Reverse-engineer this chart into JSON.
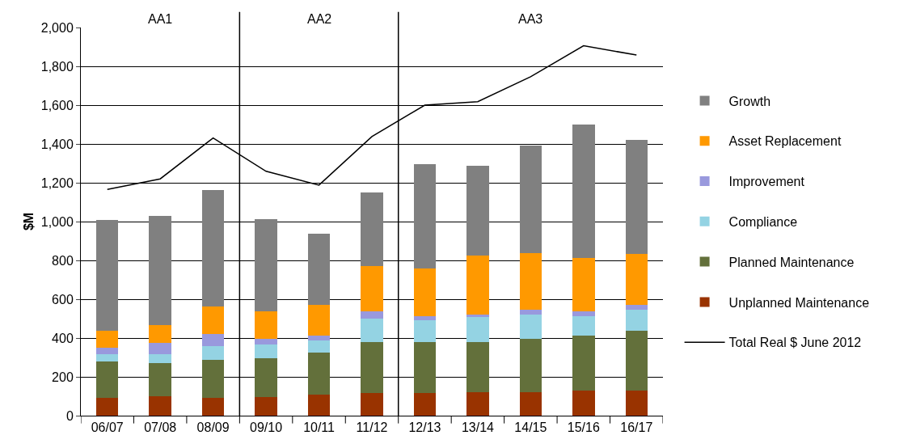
{
  "chart_data": {
    "type": "bar",
    "stacked": true,
    "ylabel": "$M",
    "categories": [
      "06/07",
      "07/08",
      "08/09",
      "09/10",
      "10/11",
      "11/12",
      "12/13",
      "13/14",
      "14/15",
      "15/16",
      "16/17"
    ],
    "series": [
      {
        "name": "Unplanned Maintenance",
        "color": "#993300",
        "values": [
          92,
          99,
          92,
          96,
          108,
          118,
          116,
          121,
          121,
          129,
          129
        ]
      },
      {
        "name": "Planned Maintenance",
        "color": "#63703b",
        "values": [
          187,
          170,
          194,
          200,
          217,
          261,
          262,
          257,
          274,
          283,
          308
        ]
      },
      {
        "name": "Compliance",
        "color": "#94d3e3",
        "values": [
          37,
          47,
          72,
          70,
          62,
          121,
          114,
          129,
          125,
          100,
          108
        ]
      },
      {
        "name": "Improvement",
        "color": "#9999dd",
        "values": [
          35,
          59,
          61,
          29,
          25,
          36,
          20,
          14,
          25,
          24,
          25
        ]
      },
      {
        "name": "Asset Replacement",
        "color": "#ff9900",
        "values": [
          85,
          91,
          142,
          141,
          157,
          233,
          246,
          304,
          291,
          275,
          262
        ]
      },
      {
        "name": "Growth",
        "color": "#808080",
        "values": [
          574,
          565,
          603,
          478,
          370,
          379,
          539,
          464,
          557,
          690,
          590
        ]
      },
      {
        "name": "Total Real $ June 2012",
        "type": "line",
        "color": "#000000",
        "values": [
          1166,
          1220,
          1431,
          1259,
          1188,
          1438,
          1600,
          1618,
          1746,
          1906,
          1858
        ]
      }
    ],
    "ylim": [
      0,
      2000
    ],
    "yticks": [
      0,
      200,
      400,
      600,
      800,
      {
        "value": 1000,
        "label": "1,000"
      },
      {
        "value": 1200,
        "label": "1,200"
      },
      {
        "value": 1400,
        "label": "1,400"
      },
      {
        "value": 1600,
        "label": "1,600"
      },
      {
        "value": 1800,
        "label": "1,800"
      },
      {
        "value": 2000,
        "label": "2,000"
      }
    ],
    "annotations": [
      "AA1",
      "AA2",
      "AA3"
    ],
    "grid": "y",
    "legend": "right"
  }
}
